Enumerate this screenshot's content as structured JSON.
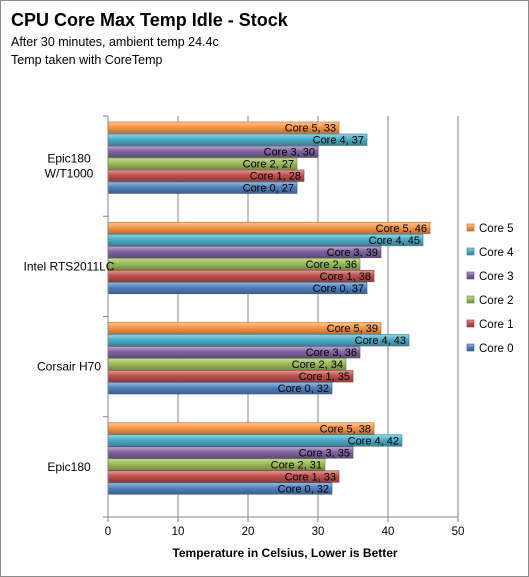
{
  "chart_data": {
    "type": "bar",
    "orientation": "horizontal",
    "title": "CPU Core Max Temp Idle - Stock",
    "subtitle": [
      "After 30 minutes, ambient temp 24.4c",
      "Temp taken with CoreTemp"
    ],
    "xlabel": "Temperature in Celsius,  Lower is Better",
    "ylabel": "",
    "xlim": [
      0,
      50
    ],
    "xticks": [
      0,
      10,
      20,
      30,
      40,
      50
    ],
    "grid": true,
    "legend_position": "right",
    "categories": [
      "Epic180 W/T1000",
      "Intel RTS2011LC",
      "Corsair H70",
      "Epic180"
    ],
    "category_lines": [
      [
        "Epic180",
        "W/T1000"
      ],
      [
        "Intel RTS2011LC"
      ],
      [
        "Corsair H70"
      ],
      [
        "Epic180"
      ]
    ],
    "series": [
      {
        "name": "Core 5",
        "color": "#f79646",
        "values": [
          33,
          46,
          39,
          38
        ]
      },
      {
        "name": "Core 4",
        "color": "#4bacc6",
        "values": [
          37,
          45,
          43,
          42
        ]
      },
      {
        "name": "Core 3",
        "color": "#8064a2",
        "values": [
          30,
          39,
          36,
          35
        ]
      },
      {
        "name": "Core 2",
        "color": "#9bbb59",
        "values": [
          27,
          36,
          34,
          31
        ]
      },
      {
        "name": "Core 1",
        "color": "#c0504d",
        "values": [
          28,
          38,
          35,
          33
        ]
      },
      {
        "name": "Core 0",
        "color": "#4f81bd",
        "values": [
          27,
          37,
          32,
          32
        ]
      }
    ]
  }
}
